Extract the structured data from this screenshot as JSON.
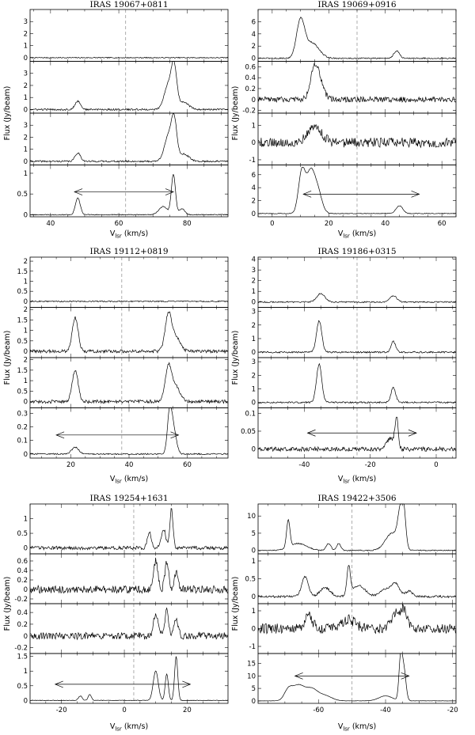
{
  "figure": {
    "xlabel_main": "V",
    "xlabel_sub": "lsr",
    "xlabel_unit": "(km/s)",
    "ylabel": "Flux (Jy/beam)"
  },
  "chart_data": [
    {
      "type": "line",
      "title": "IRAS 19067+0811",
      "xlim": [
        34,
        92
      ],
      "xticks": [
        40,
        60,
        80
      ],
      "vline": 62,
      "arrow": {
        "from": 47,
        "to": 76,
        "row": 3,
        "level": 0.55
      },
      "rows": [
        {
          "ylim": [
            -0.3,
            4
          ],
          "yticks": [
            0,
            1,
            2,
            3,
            4
          ],
          "noise": 0.04,
          "peaks": []
        },
        {
          "ylim": [
            -0.3,
            4
          ],
          "yticks": [
            0,
            1,
            2,
            3
          ],
          "noise": 0.07,
          "peaks": [
            [
              48,
              0.7,
              0.8
            ],
            [
              74.5,
              2.0,
              1.2
            ],
            [
              76.2,
              3.2,
              0.8
            ],
            [
              79,
              0.6,
              1.5
            ]
          ]
        },
        {
          "ylim": [
            -0.3,
            4
          ],
          "yticks": [
            0,
            1,
            2,
            3
          ],
          "noise": 0.07,
          "peaks": [
            [
              48,
              0.7,
              0.8
            ],
            [
              74.5,
              2.0,
              1.2
            ],
            [
              76.2,
              3.1,
              0.8
            ],
            [
              79,
              0.6,
              1.5
            ]
          ]
        },
        {
          "ylim": [
            -0.05,
            1.2
          ],
          "yticks": [
            0,
            0.5,
            1
          ],
          "noise": 0.01,
          "peaks": [
            [
              48,
              0.4,
              0.7
            ],
            [
              73,
              0.2,
              1.2
            ],
            [
              76,
              0.97,
              0.6
            ],
            [
              78.5,
              0.15,
              0.8
            ]
          ]
        }
      ]
    },
    {
      "type": "line",
      "title": "IRAS 19069+0916",
      "xlim": [
        -5,
        65
      ],
      "xticks": [
        0,
        20,
        40,
        60
      ],
      "vline": 30,
      "arrow": {
        "from": 11,
        "to": 52,
        "row": 3,
        "level": 3.0
      },
      "rows": [
        {
          "ylim": [
            -0.5,
            8
          ],
          "yticks": [
            0,
            2,
            4,
            6
          ],
          "noise": 0.1,
          "peaks": [
            [
              10,
              6.0,
              1.4
            ],
            [
              14,
              2.5,
              2.5
            ],
            [
              44,
              1.2,
              1.0
            ]
          ]
        },
        {
          "ylim": [
            -0.25,
            0.7
          ],
          "yticks": [
            -0.2,
            0,
            0.2,
            0.4,
            0.6
          ],
          "noise": 0.05,
          "peaks": [
            [
              15,
              0.55,
              1.5
            ],
            [
              17,
              0.2,
              1.5
            ]
          ]
        },
        {
          "ylim": [
            -1.3,
            1.7
          ],
          "yticks": [
            -1,
            0,
            1
          ],
          "noise": 0.28,
          "peaks": [
            [
              15,
              0.9,
              2.5
            ]
          ]
        },
        {
          "ylim": [
            -0.5,
            7.5
          ],
          "yticks": [
            0,
            2,
            4,
            6
          ],
          "noise": 0.05,
          "peaks": [
            [
              10.5,
              6.5,
              1.2
            ],
            [
              13.5,
              5.8,
              1.4
            ],
            [
              16,
              3.5,
              1.5
            ],
            [
              45,
              1.2,
              1.2
            ]
          ]
        }
      ]
    },
    {
      "type": "line",
      "title": "IRAS 19112+0819",
      "xlim": [
        6,
        74
      ],
      "xticks": [
        20,
        40,
        60
      ],
      "vline": 37.5,
      "arrow": {
        "from": 15,
        "to": 57,
        "row": 3,
        "level": 0.14
      },
      "rows": [
        {
          "ylim": [
            -0.3,
            2.2
          ],
          "yticks": [
            0,
            0.5,
            1,
            1.5,
            2
          ],
          "noise": 0.03,
          "peaks": []
        },
        {
          "ylim": [
            -0.3,
            2.1
          ],
          "yticks": [
            0,
            0.5,
            1,
            1.5,
            2
          ],
          "noise": 0.08,
          "peaks": [
            [
              21.5,
              1.6,
              1.0
            ],
            [
              53.5,
              1.7,
              1.1
            ],
            [
              56,
              0.7,
              1.5
            ]
          ]
        },
        {
          "ylim": [
            -0.3,
            2.1
          ],
          "yticks": [
            0,
            0.5,
            1,
            1.5,
            2
          ],
          "noise": 0.08,
          "peaks": [
            [
              21.5,
              1.5,
              1.0
            ],
            [
              53.5,
              1.6,
              1.1
            ],
            [
              56,
              0.7,
              1.5
            ]
          ]
        },
        {
          "ylim": [
            -0.03,
            0.34
          ],
          "yticks": [
            0,
            0.1,
            0.2,
            0.3
          ],
          "noise": 0.005,
          "peaks": [
            [
              21.5,
              0.05,
              1.2
            ],
            [
              54,
              0.32,
              0.8
            ],
            [
              55.5,
              0.15,
              0.9
            ]
          ]
        }
      ]
    },
    {
      "type": "line",
      "title": "IRAS 19186+0315",
      "xlim": [
        -54,
        6
      ],
      "xticks": [
        -40,
        -20,
        0
      ],
      "vline": -24,
      "arrow": {
        "from": -39,
        "to": -6,
        "row": 3,
        "level": 0.045
      },
      "rows": [
        {
          "ylim": [
            -0.5,
            4.2
          ],
          "yticks": [
            0,
            1,
            2,
            3,
            4
          ],
          "noise": 0.06,
          "peaks": [
            [
              -35,
              0.8,
              1.2
            ],
            [
              -13,
              0.6,
              1.0
            ]
          ]
        },
        {
          "ylim": [
            -0.4,
            3.3
          ],
          "yticks": [
            0,
            1,
            2,
            3
          ],
          "noise": 0.06,
          "peaks": [
            [
              -35.5,
              2.3,
              0.8
            ],
            [
              -13,
              0.8,
              0.7
            ]
          ]
        },
        {
          "ylim": [
            -0.4,
            3.3
          ],
          "yticks": [
            0,
            1,
            2,
            3
          ],
          "noise": 0.06,
          "peaks": [
            [
              -35.5,
              2.8,
              0.8
            ],
            [
              -13,
              1.1,
              0.7
            ]
          ]
        },
        {
          "ylim": [
            -0.025,
            0.115
          ],
          "yticks": [
            0,
            0.05,
            0.1
          ],
          "noise": 0.006,
          "peaks": [
            [
              -14,
              0.03,
              1.0
            ],
            [
              -12,
              0.09,
              0.5
            ]
          ]
        }
      ]
    },
    {
      "type": "line",
      "title": "IRAS 19254+1631",
      "xlim": [
        -30,
        33
      ],
      "xticks": [
        -20,
        0,
        20
      ],
      "vline": 3,
      "arrow": {
        "from": -22,
        "to": 21,
        "row": 3,
        "level": 0.55
      },
      "rows": [
        {
          "ylim": [
            -0.2,
            1.5
          ],
          "yticks": [
            0,
            0.5,
            1
          ],
          "noise": 0.06,
          "peaks": [
            [
              8,
              0.55,
              0.6
            ],
            [
              12.5,
              0.65,
              0.7
            ],
            [
              15,
              1.35,
              0.5
            ]
          ]
        },
        {
          "ylim": [
            -0.3,
            0.75
          ],
          "yticks": [
            -0.2,
            0,
            0.2,
            0.4,
            0.6
          ],
          "noise": 0.08,
          "peaks": [
            [
              10,
              0.6,
              0.7
            ],
            [
              13.5,
              0.55,
              0.6
            ],
            [
              16.5,
              0.35,
              0.6
            ]
          ]
        },
        {
          "ylim": [
            -0.3,
            0.55
          ],
          "yticks": [
            -0.2,
            0,
            0.2,
            0.4
          ],
          "noise": 0.06,
          "peaks": [
            [
              10,
              0.4,
              0.7
            ],
            [
              13.5,
              0.42,
              0.6
            ],
            [
              16.5,
              0.3,
              0.6
            ]
          ]
        },
        {
          "ylim": [
            -0.1,
            1.6
          ],
          "yticks": [
            0,
            0.5,
            1,
            1.5
          ],
          "noise": 0.01,
          "peaks": [
            [
              -14,
              0.15,
              0.6
            ],
            [
              -11,
              0.2,
              0.5
            ],
            [
              10,
              1.0,
              0.8
            ],
            [
              13.5,
              0.9,
              0.5
            ],
            [
              16.5,
              1.5,
              0.5
            ]
          ]
        }
      ]
    },
    {
      "type": "line",
      "title": "IRAS 19422+3506",
      "xlim": [
        -78,
        -19
      ],
      "xticks": [
        -60,
        -40,
        -20
      ],
      "vline": -50,
      "arrow": {
        "from": -67,
        "to": -33,
        "row": 3,
        "level": 10
      },
      "rows": [
        {
          "ylim": [
            -1,
            13.5
          ],
          "yticks": [
            0,
            5,
            10
          ],
          "noise": 0.15,
          "peaks": [
            [
              -69,
              8.0,
              0.5
            ],
            [
              -66,
              2.0,
              2.5
            ],
            [
              -57,
              2.0,
              0.7
            ],
            [
              -54,
              2.0,
              0.6
            ],
            [
              -38,
              5.0,
              2.0
            ],
            [
              -35.5,
              10.0,
              0.8
            ],
            [
              -34.5,
              8.0,
              0.6
            ]
          ]
        },
        {
          "ylim": [
            -0.2,
            1.2
          ],
          "yticks": [
            0,
            0.5,
            1
          ],
          "noise": 0.03,
          "peaks": [
            [
              -64,
              0.55,
              1.0
            ],
            [
              -58,
              0.25,
              1.5
            ],
            [
              -51,
              0.8,
              0.5
            ],
            [
              -48,
              0.3,
              2.0
            ],
            [
              -40,
              0.2,
              1.5
            ],
            [
              -37,
              0.35,
              1.2
            ],
            [
              -33,
              0.15,
              1.0
            ]
          ]
        },
        {
          "ylim": [
            -1.4,
            1.4
          ],
          "yticks": [
            -1,
            0,
            1
          ],
          "noise": 0.28,
          "peaks": [
            [
              -63,
              0.7,
              1.2
            ],
            [
              -51,
              0.5,
              2.0
            ],
            [
              -37,
              0.8,
              1.5
            ],
            [
              -34.5,
              0.9,
              1.0
            ]
          ]
        },
        {
          "ylim": [
            -1,
            19
          ],
          "yticks": [
            0,
            5,
            10,
            15
          ],
          "noise": 0.05,
          "peaks": [
            [
              -69,
              4.0,
              1.2
            ],
            [
              -66,
              6.0,
              1.8
            ],
            [
              -62,
              4.5,
              1.8
            ],
            [
              -58,
              2.0,
              2.0
            ],
            [
              -40,
              2.0,
              2.0
            ],
            [
              -35.5,
              17.0,
              0.5
            ],
            [
              -34.5,
              12.0,
              0.6
            ]
          ]
        }
      ]
    }
  ]
}
